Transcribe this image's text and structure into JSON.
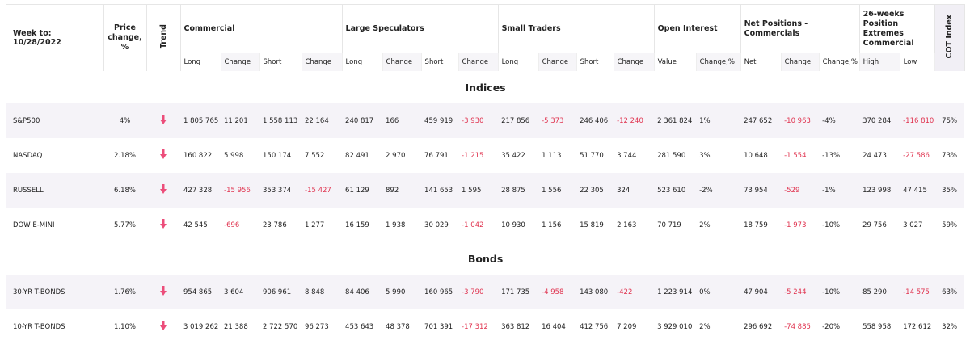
{
  "header": {
    "week_label": "Week to:",
    "week_date": "10/28/2022",
    "price_change": "Price change, %",
    "trend": "Trend",
    "groups": [
      "Commercial",
      "Large Speculators",
      "Small Traders",
      "Open Interest",
      "Net Positions - Commercials",
      "26-weeks Position Extremes Commercial"
    ],
    "cot_index": "COT Index",
    "subheaders": [
      "Long",
      "Change",
      "Short",
      "Change",
      "Long",
      "Change",
      "Short",
      "Change",
      "Long",
      "Change",
      "Short",
      "Change",
      "Value",
      "Change,%",
      "Net",
      "Change",
      "Change,%",
      "High",
      "Low"
    ]
  },
  "sections": [
    {
      "title": "Indices",
      "rows": [
        {
          "name": "S&P500",
          "price_change": "4%",
          "values": [
            "1 805 765",
            "11 201",
            "1 558 113",
            "22 164",
            "240 817",
            "166",
            "459 919",
            "-3 930",
            "217 856",
            "-5 373",
            "246 406",
            "-12 240",
            "2 361 824",
            "1%",
            "247 652",
            "-10 963",
            "-4%",
            "370 284",
            "-116 810"
          ],
          "cot_index": "75%"
        },
        {
          "name": "NASDAQ",
          "price_change": "2.18%",
          "values": [
            "160 822",
            "5 998",
            "150 174",
            "7 552",
            "82 491",
            "2 970",
            "76 791",
            "-1 215",
            "35 422",
            "1 113",
            "51 770",
            "3 744",
            "281 590",
            "3%",
            "10 648",
            "-1 554",
            "-13%",
            "24 473",
            "-27 586"
          ],
          "cot_index": "73%"
        },
        {
          "name": "RUSSELL",
          "price_change": "6.18%",
          "values": [
            "427 328",
            "-15 956",
            "353 374",
            "-15 427",
            "61 129",
            "892",
            "141 653",
            "1 595",
            "28 875",
            "1 556",
            "22 305",
            "324",
            "523 610",
            "-2%",
            "73 954",
            "-529",
            "-1%",
            "123 998",
            "47 415"
          ],
          "cot_index": "35%"
        },
        {
          "name": "DOW E-MINI",
          "price_change": "5.77%",
          "values": [
            "42 545",
            "-696",
            "23 786",
            "1 277",
            "16 159",
            "1 938",
            "30 029",
            "-1 042",
            "10 930",
            "1 156",
            "15 819",
            "2 163",
            "70 719",
            "2%",
            "18 759",
            "-1 973",
            "-10%",
            "29 756",
            "3 027"
          ],
          "cot_index": "59%"
        }
      ]
    },
    {
      "title": "Bonds",
      "rows": [
        {
          "name": "30-YR T-BONDS",
          "price_change": "1.76%",
          "values": [
            "954 865",
            "3 604",
            "906 961",
            "8 848",
            "84 406",
            "5 990",
            "160 965",
            "-3 790",
            "171 735",
            "-4 958",
            "143 080",
            "-422",
            "1 223 914",
            "0%",
            "47 904",
            "-5 244",
            "-10%",
            "85 290",
            "-14 575"
          ],
          "cot_index": "63%"
        },
        {
          "name": "10-YR T-BONDS",
          "price_change": "1.10%",
          "values": [
            "3 019 262",
            "21 388",
            "2 722 570",
            "96 273",
            "453 643",
            "48 378",
            "701 391",
            "-17 312",
            "363 812",
            "16 404",
            "412 756",
            "7 209",
            "3 929 010",
            "2%",
            "296 692",
            "-74 885",
            "-20%",
            "558 958",
            "172 612"
          ],
          "cot_index": "32%"
        }
      ]
    }
  ]
}
